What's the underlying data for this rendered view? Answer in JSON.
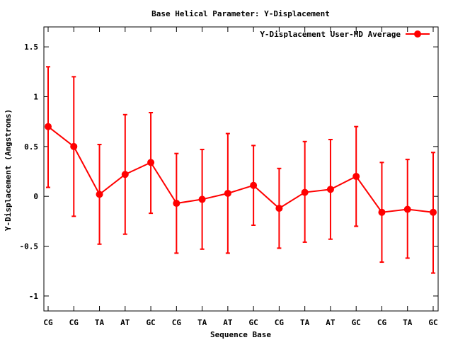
{
  "chart_data": {
    "type": "line",
    "title": "Base  Helical Parameter: Y-Displacement",
    "xlabel": "Sequence Base",
    "ylabel": "Y-Displacement (Angstroms)",
    "categories": [
      "CG",
      "CG",
      "TA",
      "AT",
      "GC",
      "CG",
      "TA",
      "AT",
      "GC",
      "CG",
      "TA",
      "AT",
      "GC",
      "CG",
      "TA",
      "GC"
    ],
    "ylim": [
      -1.15,
      1.7
    ],
    "yticks": [
      1.5,
      1,
      0.5,
      0,
      -0.5,
      -1
    ],
    "ytick_labels": [
      "1.5",
      "1",
      "0.5",
      "0",
      "-0.5",
      "-1"
    ],
    "grid": false,
    "legend_position": "top-right",
    "series": [
      {
        "name": "Y-Displacement User-MD Average",
        "color": "#ff0000",
        "values": [
          0.7,
          0.5,
          0.02,
          0.22,
          0.34,
          -0.07,
          -0.03,
          0.03,
          0.11,
          -0.12,
          0.04,
          0.07,
          0.2,
          -0.16,
          -0.13,
          -0.16
        ],
        "error_low": [
          0.09,
          -0.2,
          -0.48,
          -0.38,
          -0.17,
          -0.57,
          -0.53,
          -0.57,
          -0.29,
          -0.52,
          -0.46,
          -0.43,
          -0.3,
          -0.66,
          -0.62,
          -0.77
        ],
        "error_high": [
          1.3,
          1.2,
          0.52,
          0.82,
          0.84,
          0.43,
          0.47,
          0.63,
          0.51,
          0.28,
          0.55,
          0.57,
          0.7,
          0.34,
          0.37,
          0.44
        ]
      }
    ]
  }
}
